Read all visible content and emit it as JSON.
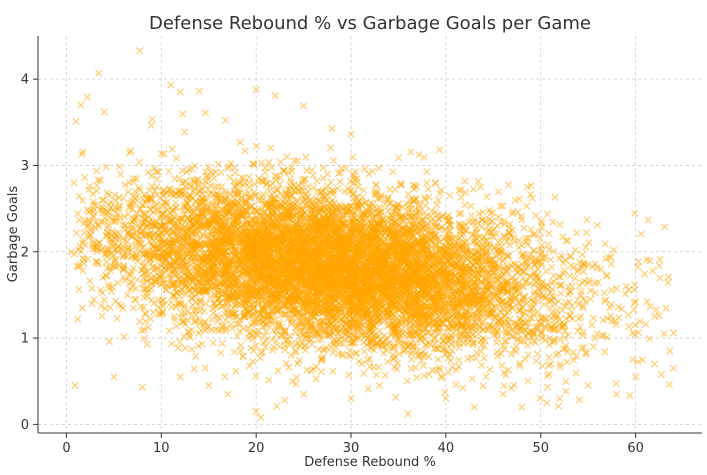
{
  "chart_data": {
    "type": "scatter",
    "title": "Defense Rebound % vs Garbage Goals per Game",
    "xlabel": "Defense Rebound %",
    "ylabel": "Garbage Goals",
    "xlim": [
      -3,
      67
    ],
    "ylim": [
      -0.1,
      4.5
    ],
    "xticks": [
      0,
      10,
      20,
      30,
      40,
      50,
      60
    ],
    "yticks": [
      0,
      1,
      2,
      3,
      4
    ],
    "grid": true,
    "marker": "x",
    "color": "#FFA500",
    "point_count": 9000,
    "trend": {
      "slope": -0.0145,
      "intercept": 2.23,
      "noise_sd": 0.44,
      "x_mean": 28,
      "x_sd": 11.5,
      "x_min": 0.5,
      "x_max": 64,
      "y_min": 0.03,
      "y_max": 4.3
    },
    "points": [
      [
        7.7,
        4.33
      ],
      [
        3.4,
        4.07
      ],
      [
        1.0,
        3.51
      ],
      [
        1.5,
        3.7
      ],
      [
        2.2,
        3.79
      ],
      [
        4.0,
        3.62
      ],
      [
        11.0,
        3.93
      ],
      [
        12.0,
        3.85
      ],
      [
        14.0,
        3.86
      ],
      [
        20.0,
        3.88
      ],
      [
        22.0,
        3.81
      ],
      [
        25.0,
        3.69
      ],
      [
        28.0,
        3.43
      ],
      [
        30.0,
        3.36
      ],
      [
        35.0,
        3.09
      ],
      [
        38.0,
        2.93
      ],
      [
        42.0,
        2.82
      ],
      [
        46.0,
        2.53
      ],
      [
        47.0,
        2.44
      ],
      [
        50.0,
        2.03
      ],
      [
        52.0,
        1.92
      ],
      [
        55.0,
        1.85
      ],
      [
        57.0,
        1.73
      ],
      [
        59.0,
        1.6
      ],
      [
        60.0,
        1.42
      ],
      [
        62.0,
        1.25
      ],
      [
        63.0,
        1.05
      ],
      [
        64.0,
        1.06
      ],
      [
        64.0,
        0.65
      ],
      [
        0.8,
        2.8
      ],
      [
        0.5,
        2.0
      ],
      [
        1.2,
        1.22
      ],
      [
        0.9,
        0.45
      ],
      [
        5.0,
        0.55
      ],
      [
        8.0,
        0.43
      ],
      [
        12.0,
        0.55
      ],
      [
        15.0,
        0.45
      ],
      [
        17.0,
        0.35
      ],
      [
        20.0,
        0.15
      ],
      [
        20.5,
        0.08
      ],
      [
        23.0,
        0.28
      ],
      [
        25.0,
        0.35
      ],
      [
        30.0,
        0.3
      ],
      [
        33.0,
        0.45
      ],
      [
        36.0,
        0.12
      ],
      [
        40.0,
        0.3
      ],
      [
        43.0,
        0.2
      ],
      [
        46.0,
        0.35
      ],
      [
        48.0,
        0.2
      ],
      [
        52.0,
        0.3
      ],
      [
        55.0,
        0.45
      ],
      [
        58.0,
        0.35
      ],
      [
        60.0,
        0.55
      ],
      [
        62.0,
        0.7
      ]
    ]
  }
}
